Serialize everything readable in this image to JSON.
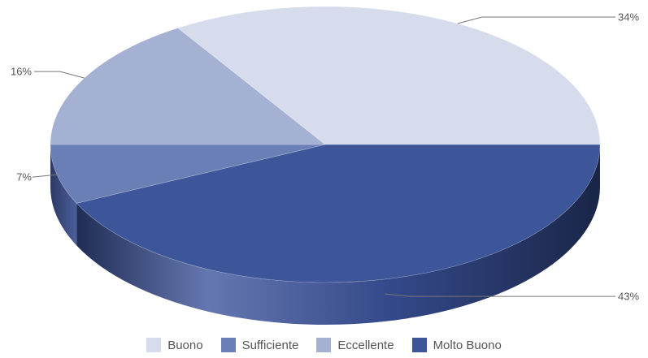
{
  "chart_data": {
    "type": "pie",
    "title": "",
    "style": "3d",
    "legend_position": "bottom",
    "slices": [
      {
        "label": "Buono",
        "value": 34,
        "display": "34%",
        "color": "#d7dcec"
      },
      {
        "label": "Sufficiente",
        "value": 7,
        "display": "7%",
        "color": "#6a7fb5"
      },
      {
        "label": "Eccellente",
        "value": 16,
        "display": "16%",
        "color": "#a4b1d3"
      },
      {
        "label": "Molto Buono",
        "value": 43,
        "display": "43%",
        "color": "#3c5699"
      }
    ]
  }
}
